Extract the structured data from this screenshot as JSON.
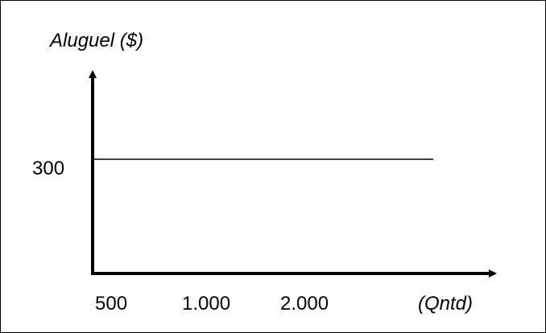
{
  "chart_data": {
    "type": "line",
    "ylabel": "Aluguel ($)",
    "xlabel": "(Qntd)",
    "x_ticks": [
      "500",
      "1.000",
      "2.000"
    ],
    "y_ticks": [
      "300"
    ],
    "series": [
      {
        "x": [
          500,
          2000
        ],
        "y": [
          300,
          300
        ]
      }
    ],
    "grid": false,
    "line_color": "#000000",
    "axis_color": "#000000"
  }
}
